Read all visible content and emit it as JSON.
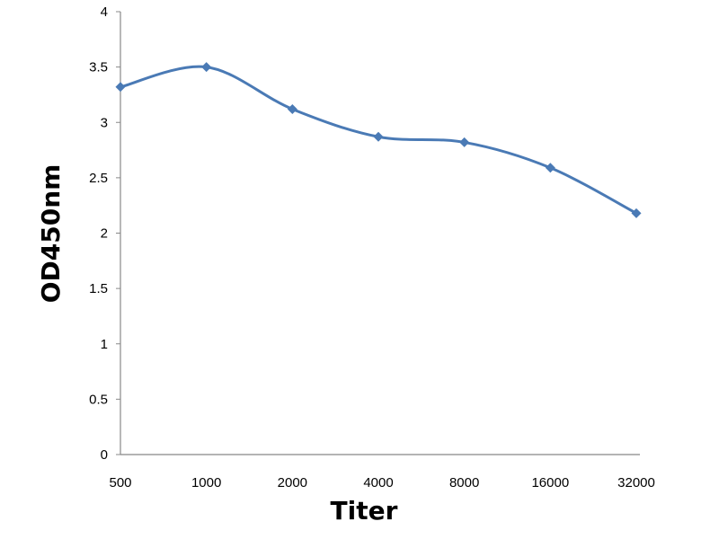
{
  "chart_data": {
    "type": "line",
    "title": "",
    "xlabel": "Titer",
    "ylabel": "OD450nm",
    "categories": [
      "500",
      "1000",
      "2000",
      "4000",
      "8000",
      "16000",
      "32000"
    ],
    "series": [
      {
        "values": [
          3.32,
          3.5,
          3.12,
          2.87,
          2.82,
          2.59,
          2.18
        ],
        "color": "#4a7ab5",
        "marker": "diamond",
        "smooth": true
      }
    ],
    "ylim": [
      0,
      4
    ],
    "yticks": [
      "0",
      "0.5",
      "1",
      "1.5",
      "2",
      "2.5",
      "3",
      "3.5",
      "4"
    ],
    "grid": false,
    "legend": "none"
  }
}
